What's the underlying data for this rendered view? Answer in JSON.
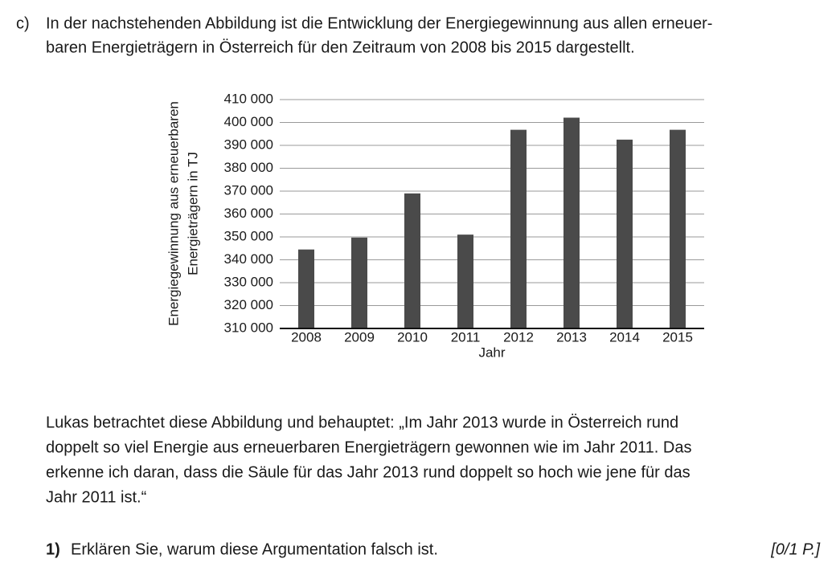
{
  "label": "c)",
  "intro": [
    "In der nachstehenden Abbildung ist die Entwicklung der Energiegewinnung aus allen erneuer-",
    "baren Energieträgern in Österreich für den Zeitraum von 2008 bis 2015 dargestellt."
  ],
  "chart_data": {
    "type": "bar",
    "ylabel": [
      "Energiegewinnung aus erneuerbaren",
      "Energieträgern in TJ"
    ],
    "xlabel": "Jahr",
    "categories": [
      "2008",
      "2009",
      "2010",
      "2011",
      "2012",
      "2013",
      "2014",
      "2015"
    ],
    "values": [
      344500,
      349700,
      369000,
      351000,
      396800,
      402100,
      392500,
      396800
    ],
    "color": "#4a4a4a",
    "ylim": [
      310000,
      410000
    ],
    "yticks": [
      {
        "value": 310000,
        "label": "310 000"
      },
      {
        "value": 320000,
        "label": "320 000"
      },
      {
        "value": 330000,
        "label": "330 000"
      },
      {
        "value": 340000,
        "label": "340 000"
      },
      {
        "value": 350000,
        "label": "350 000"
      },
      {
        "value": 360000,
        "label": "360 000"
      },
      {
        "value": 370000,
        "label": "370 000"
      },
      {
        "value": 380000,
        "label": "380 000"
      },
      {
        "value": 390000,
        "label": "390 000"
      },
      {
        "value": 400000,
        "label": "400 000"
      },
      {
        "value": 410000,
        "label": "410 000"
      }
    ],
    "grid": true
  },
  "paragraph": [
    "Lukas betrachtet diese Abbildung und behauptet: „Im Jahr 2013 wurde in Österreich rund",
    "doppelt so viel Energie aus erneuerbaren Energieträgern gewonnen wie im Jahr 2011. Das",
    "erkenne ich daran, dass die Säule für das Jahr 2013 rund doppelt so hoch wie jene für das",
    "Jahr 2011 ist.“"
  ],
  "task": {
    "number": "1)",
    "text": "Erklären Sie, warum diese Argumentation falsch ist.",
    "points": "[0/1 P.]"
  }
}
